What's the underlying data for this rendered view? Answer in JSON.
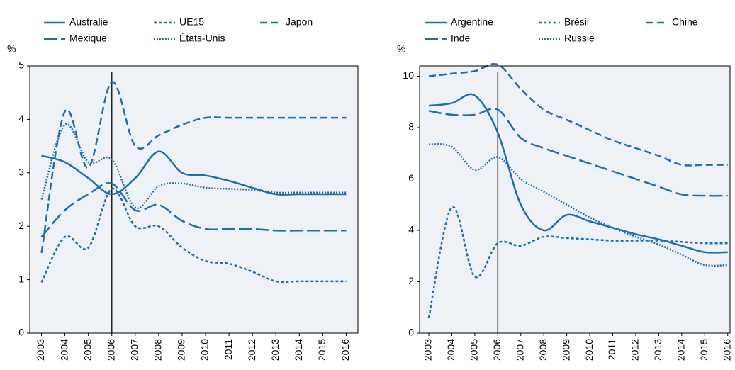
{
  "chart_data": [
    {
      "type": "line",
      "y_unit": "%",
      "x": [
        2003,
        2004,
        2005,
        2006,
        2007,
        2008,
        2009,
        2010,
        2011,
        2012,
        2013,
        2014,
        2015,
        2016
      ],
      "xlim": [
        2002.5,
        2016.5
      ],
      "xticks": [
        2003,
        2004,
        2005,
        2006,
        2007,
        2008,
        2009,
        2010,
        2011,
        2012,
        2013,
        2014,
        2015,
        2016
      ],
      "ylim": [
        0,
        5
      ],
      "yticks": [
        0,
        1,
        2,
        3,
        4,
        5
      ],
      "vline_x": 2006,
      "series": [
        {
          "name": "Australie",
          "color": "#1f6db4",
          "dash": "solid",
          "values": [
            3.32,
            3.2,
            2.9,
            2.6,
            2.9,
            3.4,
            3.0,
            2.95,
            2.85,
            2.72,
            2.6,
            2.6,
            2.6,
            2.6
          ]
        },
        {
          "name": "UE15",
          "color": "#1f6db4",
          "dash": "short",
          "values": [
            0.95,
            1.8,
            1.6,
            2.7,
            2.0,
            2.0,
            1.6,
            1.35,
            1.3,
            1.15,
            0.97,
            0.97,
            0.97,
            0.97
          ]
        },
        {
          "name": "Japon",
          "color": "#1f6db4",
          "dash": "medium",
          "values": [
            1.5,
            4.15,
            3.1,
            4.7,
            3.5,
            3.7,
            3.9,
            4.03,
            4.03,
            4.03,
            4.03,
            4.03,
            4.03,
            4.03
          ]
        },
        {
          "name": "Mexique",
          "color": "#1f6db4",
          "dash": "long",
          "values": [
            1.8,
            2.3,
            2.6,
            2.8,
            2.3,
            2.4,
            2.1,
            1.95,
            1.95,
            1.95,
            1.92,
            1.92,
            1.92,
            1.92
          ]
        },
        {
          "name": "États-Unis",
          "color": "#1f6db4",
          "dash": "dotted",
          "values": [
            2.5,
            3.9,
            3.2,
            3.25,
            2.35,
            2.75,
            2.8,
            2.72,
            2.7,
            2.68,
            2.63,
            2.63,
            2.63,
            2.63
          ]
        }
      ]
    },
    {
      "type": "line",
      "y_unit": "%",
      "x": [
        2003,
        2004,
        2005,
        2006,
        2007,
        2008,
        2009,
        2010,
        2011,
        2012,
        2013,
        2014,
        2015,
        2016
      ],
      "xlim": [
        2002.6,
        2016.1
      ],
      "xticks": [
        2003,
        2004,
        2005,
        2006,
        2007,
        2008,
        2009,
        2010,
        2011,
        2012,
        2013,
        2014,
        2015,
        2016
      ],
      "ylim": [
        0,
        10.4
      ],
      "yticks": [
        0,
        2,
        4,
        6,
        8,
        10
      ],
      "vline_x": 2006,
      "series": [
        {
          "name": "Argentine",
          "color": "#1f6db4",
          "dash": "solid",
          "values": [
            8.85,
            8.95,
            9.25,
            7.8,
            5.0,
            4.0,
            4.6,
            4.35,
            4.1,
            3.85,
            3.65,
            3.4,
            3.15,
            3.15
          ]
        },
        {
          "name": "Brésil",
          "color": "#1f6db4",
          "dash": "short",
          "values": [
            0.6,
            4.9,
            2.2,
            3.5,
            3.4,
            3.75,
            3.7,
            3.65,
            3.6,
            3.6,
            3.6,
            3.55,
            3.5,
            3.5
          ]
        },
        {
          "name": "Chine",
          "color": "#1f6db4",
          "dash": "medium",
          "values": [
            10.0,
            10.1,
            10.2,
            10.45,
            9.5,
            8.7,
            8.3,
            7.9,
            7.5,
            7.2,
            6.9,
            6.55,
            6.55,
            6.55
          ]
        },
        {
          "name": "Inde",
          "color": "#1f6db4",
          "dash": "long",
          "values": [
            8.65,
            8.5,
            8.5,
            8.7,
            7.6,
            7.2,
            6.9,
            6.6,
            6.3,
            6.0,
            5.7,
            5.4,
            5.35,
            5.35
          ]
        },
        {
          "name": "Russie",
          "color": "#1f6db4",
          "dash": "dotted",
          "values": [
            7.35,
            7.25,
            6.35,
            6.85,
            6.0,
            5.5,
            5.0,
            4.5,
            4.1,
            3.75,
            3.45,
            3.05,
            2.65,
            2.65
          ]
        }
      ]
    }
  ]
}
